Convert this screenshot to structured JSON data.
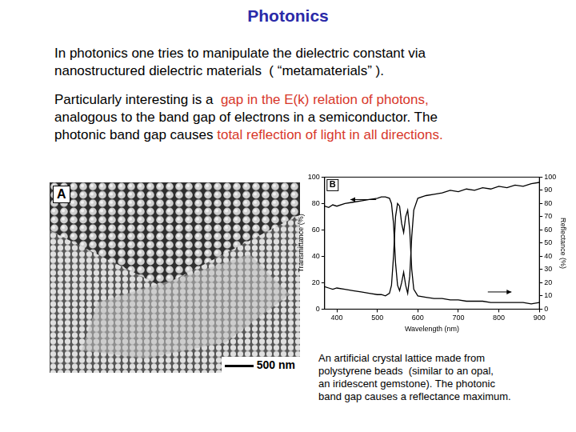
{
  "slide": {
    "title": "Photonics",
    "paragraphs": [
      [
        [
          {
            "text": "In photonics one tries to manipulate the dielectric constant via",
            "color": "#000000"
          }
        ],
        [
          {
            "text": "nanostructured dielectric materials  ( “metamaterials” ).",
            "color": "#000000"
          }
        ]
      ],
      [
        [
          {
            "text": "Particularly interesting is a  ",
            "color": "#000000"
          },
          {
            "text": "gap in the E(k) relation of photons,",
            "color": "#d8372b"
          }
        ],
        [
          {
            "text": "analogous to the band gap of electrons in a semiconductor. The",
            "color": "#000000"
          }
        ],
        [
          {
            "text": "photonic band gap causes ",
            "color": "#000000"
          },
          {
            "text": "total reflection of light in all directions.",
            "color": "#d8372b"
          }
        ]
      ]
    ],
    "panel_a": {
      "label": "A",
      "scale_bar": "500 nm"
    },
    "panel_b": {
      "label": "B"
    },
    "caption": [
      "An artificial crystal lattice made from",
      "polystyrene beads  (similar to an opal,",
      "an iridescent gemstone). The photonic",
      "band gap causes a reflectance maximum."
    ]
  },
  "chart_data": {
    "type": "line",
    "x_label": "Wavelength (nm)",
    "y_label": "Transmittance (%)",
    "y2_label": "Reflectance (%)",
    "xlim": [
      370,
      900
    ],
    "xticks": [
      400,
      500,
      600,
      700,
      800,
      900
    ],
    "ylim": [
      0,
      100
    ],
    "yticks": [
      0,
      20,
      40,
      60,
      80,
      100
    ],
    "y2lim": [
      0,
      100
    ],
    "y2ticks": [
      0,
      10,
      20,
      30,
      40,
      50,
      60,
      70,
      80,
      90,
      100
    ],
    "grid": false,
    "x": [
      370,
      380,
      390,
      400,
      420,
      440,
      460,
      480,
      500,
      510,
      520,
      530,
      535,
      540,
      545,
      550,
      555,
      560,
      565,
      570,
      575,
      580,
      585,
      590,
      600,
      620,
      640,
      660,
      680,
      700,
      720,
      740,
      760,
      780,
      800,
      820,
      840,
      860,
      880,
      900
    ],
    "series": [
      {
        "color": "#000000",
        "axis": "y",
        "values": [
          78,
          77,
          79,
          78,
          80,
          81,
          82,
          83,
          84,
          85,
          85,
          84,
          80,
          65,
          35,
          18,
          14,
          20,
          28,
          18,
          12,
          25,
          55,
          75,
          84,
          86,
          87,
          88,
          90,
          89,
          91,
          90,
          92,
          91,
          93,
          92,
          94,
          93,
          95,
          96
        ]
      },
      {
        "color": "#000000",
        "axis": "y2",
        "values": [
          17,
          16,
          15,
          16,
          15,
          14,
          13,
          12,
          11,
          11,
          10,
          12,
          18,
          40,
          70,
          80,
          78,
          65,
          58,
          70,
          75,
          60,
          30,
          15,
          10,
          9,
          8,
          8,
          7,
          7,
          6,
          6,
          6,
          5,
          5,
          5,
          5,
          5,
          4,
          5
        ]
      }
    ]
  }
}
